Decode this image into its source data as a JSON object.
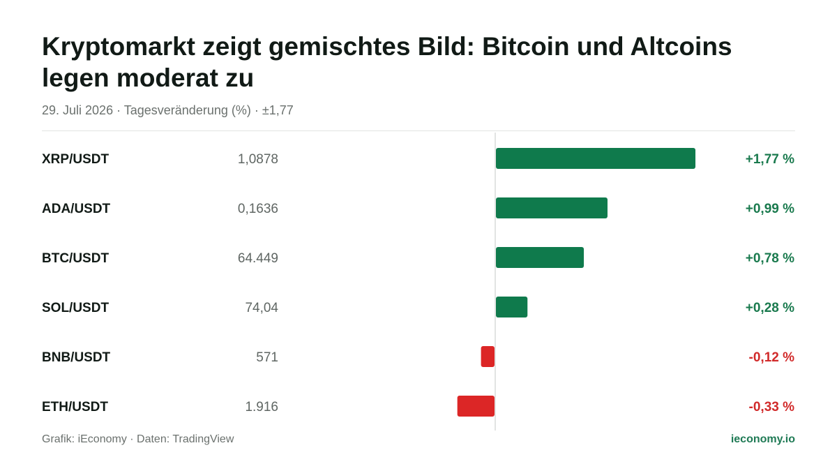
{
  "header": {
    "title": "Kryptomarkt zeigt gemischtes Bild: Bitcoin und Altcoins legen moderat zu",
    "subtitle": "29. Juli 2026 · Tagesveränderung (%) · ±1,77"
  },
  "footer": {
    "source": "Grafik: iEconomy · Daten: TradingView",
    "brand": "ieconomy.io"
  },
  "colors": {
    "positive": "#0f7a4c",
    "negative": "#dc2626",
    "positive_text": "#1a7a4e",
    "negative_text": "#d12a2a"
  },
  "chart_data": {
    "type": "bar",
    "orientation": "horizontal",
    "unit": "%",
    "xlim": [
      -0.55,
      1.77
    ],
    "categories": [
      "XRP/USDT",
      "ADA/USDT",
      "BTC/USDT",
      "SOL/USDT",
      "BNB/USDT",
      "ETH/USDT"
    ],
    "prices": [
      "1,0878",
      "0,1636",
      "64.449",
      "74,04",
      "571",
      "1.916"
    ],
    "values": [
      1.77,
      0.99,
      0.78,
      0.28,
      -0.12,
      -0.33
    ],
    "value_labels": [
      "+1,77 %",
      "+0,99 %",
      "+0,78 %",
      "+0,28 %",
      "-0,12 %",
      "-0,33 %"
    ]
  }
}
